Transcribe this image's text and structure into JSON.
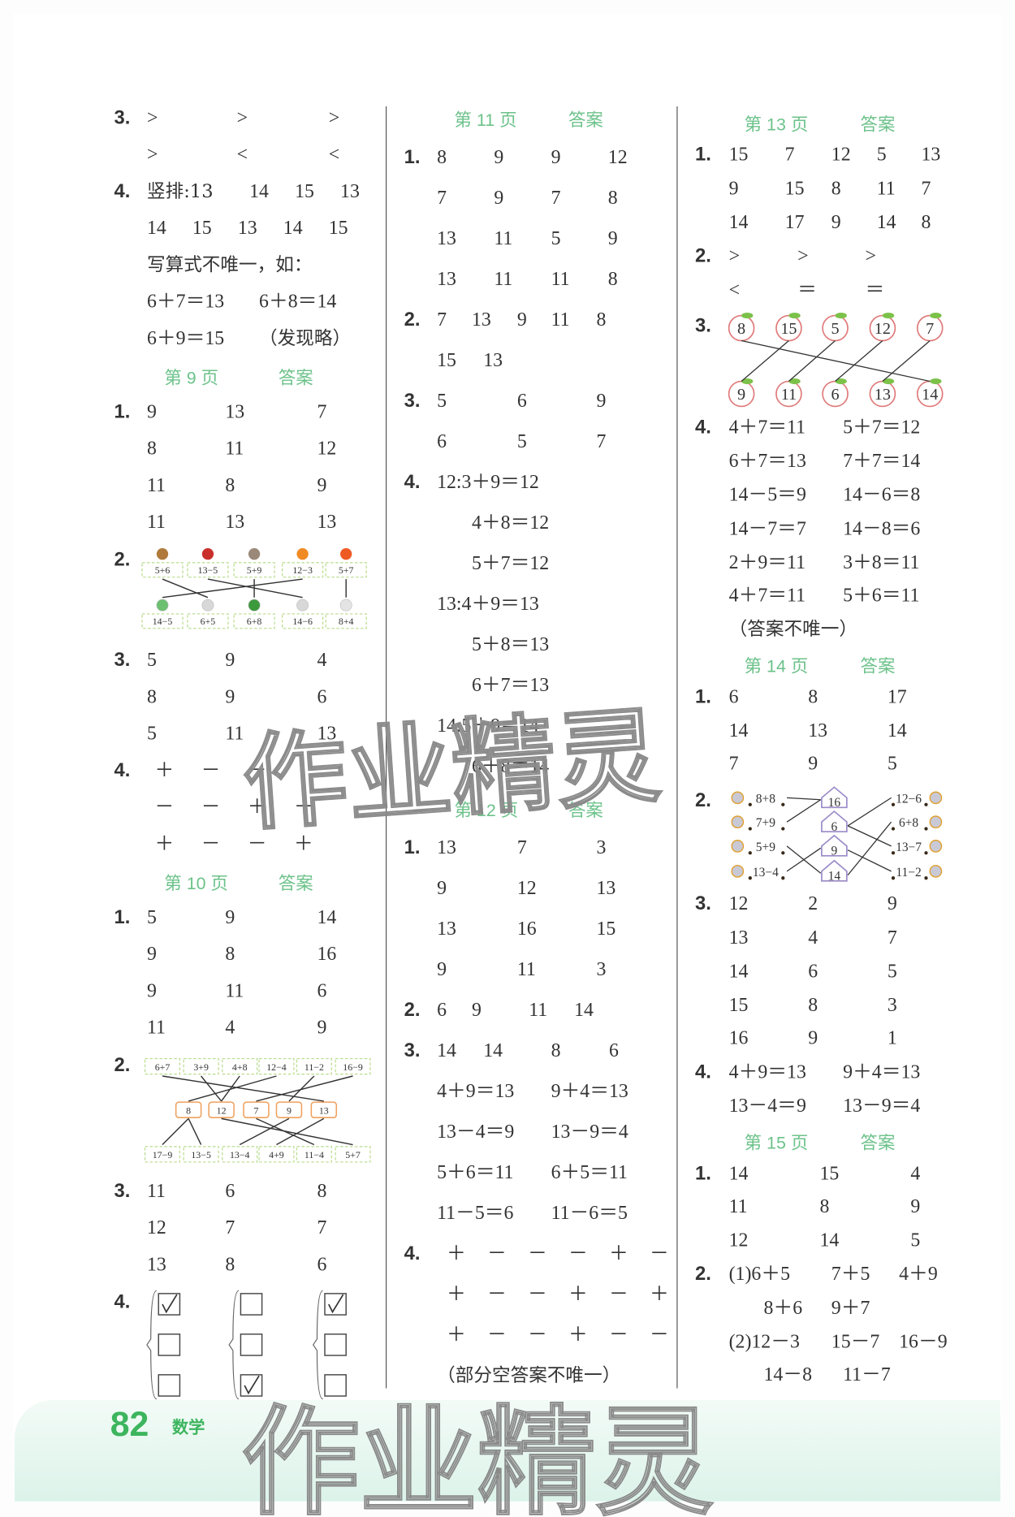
{
  "footer": {
    "page_number": "82",
    "subject": "数学"
  },
  "watermark": "作业精灵",
  "colors": {
    "header_green": "#6cc28a",
    "page_number_green": "#3db55e",
    "box_dash_green": "#b8dc8c",
    "box_orange": "#efa15e",
    "apple_red": "#e07a7a"
  },
  "columns": [
    {
      "blocks": [
        {
          "type": "line",
          "label": "3.",
          "cells": [
            ">",
            ">",
            ">"
          ]
        },
        {
          "type": "line",
          "label": "",
          "cells": [
            ">",
            "<",
            "<"
          ]
        },
        {
          "type": "line",
          "label": "4.",
          "cells": [
            "竖排:13",
            "14",
            "15",
            "13"
          ]
        },
        {
          "type": "line",
          "label": "",
          "cells": [
            "14",
            "15",
            "13",
            "14",
            "15"
          ]
        },
        {
          "type": "line",
          "label": "",
          "cells": [
            "写算式不唯一，如："
          ]
        },
        {
          "type": "line",
          "label": "",
          "cells": [
            "6＋7＝13",
            "6＋8＝14"
          ]
        },
        {
          "type": "line",
          "label": "",
          "cells": [
            "6＋9＝15",
            "（发现略）"
          ]
        },
        {
          "type": "header",
          "page": "第 9 页",
          "answer": "答案"
        },
        {
          "type": "line",
          "label": "1.",
          "cells": [
            "9",
            "13",
            "7"
          ]
        },
        {
          "type": "line",
          "label": "",
          "cells": [
            "8",
            "11",
            "12"
          ]
        },
        {
          "type": "line",
          "label": "",
          "cells": [
            "11",
            "8",
            "9"
          ]
        },
        {
          "type": "line",
          "label": "",
          "cells": [
            "11",
            "13",
            "13"
          ]
        },
        {
          "type": "diagram",
          "id": "d9",
          "label": "2.",
          "top": [
            "5+6",
            "13−5",
            "5+9",
            "12−3",
            "5+7"
          ],
          "top_icons": [
            "monkey-icon",
            "ladybug-icon",
            "bird-icon",
            "fox-icon",
            "squirrel-icon"
          ],
          "bottom": [
            "14−5",
            "6+5",
            "6+8",
            "14−6",
            "8+4"
          ],
          "bottom_icons": [
            "bird-icon",
            "rabbit-icon",
            "turtle-icon",
            "rabbit-icon",
            "goat-icon"
          ],
          "matches": [
            [
              0,
              1
            ],
            [
              1,
              3
            ],
            [
              2,
              2
            ],
            [
              3,
              0
            ],
            [
              4,
              4
            ]
          ]
        },
        {
          "type": "line",
          "label": "3.",
          "cells": [
            "5",
            "9",
            "4"
          ]
        },
        {
          "type": "line",
          "label": "",
          "cells": [
            "8",
            "9",
            "6"
          ]
        },
        {
          "type": "line",
          "label": "",
          "cells": [
            "5",
            "11",
            "13"
          ]
        },
        {
          "type": "line",
          "label": "4.",
          "cells": [
            "＋",
            "－",
            "－"
          ]
        },
        {
          "type": "line",
          "label": "",
          "cells": [
            "－",
            "－",
            "＋",
            "－"
          ]
        },
        {
          "type": "line",
          "label": "",
          "cells": [
            "＋",
            "－",
            "－",
            "＋"
          ]
        },
        {
          "type": "header",
          "page": "第 10 页",
          "answer": "答案"
        },
        {
          "type": "line",
          "label": "1.",
          "cells": [
            "5",
            "9",
            "14"
          ]
        },
        {
          "type": "line",
          "label": "",
          "cells": [
            "9",
            "8",
            "16"
          ]
        },
        {
          "type": "line",
          "label": "",
          "cells": [
            "9",
            "11",
            "6"
          ]
        },
        {
          "type": "line",
          "label": "",
          "cells": [
            "11",
            "4",
            "9"
          ]
        },
        {
          "type": "diagram",
          "id": "d10",
          "label": "2.",
          "top": [
            "6+7",
            "3+9",
            "4+8",
            "12−4",
            "11−2",
            "16−9"
          ],
          "middle": [
            "8",
            "12",
            "7",
            "9",
            "13"
          ],
          "bottom": [
            "17−9",
            "13−5",
            "13−4",
            "4+9",
            "11−4",
            "5+7"
          ],
          "top_matches": [
            [
              0,
              4
            ],
            [
              1,
              1
            ],
            [
              2,
              1
            ],
            [
              3,
              0
            ],
            [
              4,
              3
            ],
            [
              5,
              2
            ]
          ],
          "bottom_matches": [
            [
              0,
              0
            ],
            [
              0,
              1
            ],
            [
              1,
              5
            ],
            [
              2,
              4
            ],
            [
              3,
              2
            ],
            [
              4,
              3
            ]
          ]
        },
        {
          "type": "line",
          "label": "3.",
          "cells": [
            "11",
            "6",
            "8"
          ]
        },
        {
          "type": "line",
          "label": "",
          "cells": [
            "12",
            "7",
            "7"
          ]
        },
        {
          "type": "line",
          "label": "",
          "cells": [
            "13",
            "8",
            "6"
          ]
        },
        {
          "type": "diagram",
          "id": "checks",
          "label": "4.",
          "groups": [
            [
              true,
              false,
              false
            ],
            [
              false,
              false,
              true
            ],
            [
              true,
              false,
              false
            ]
          ]
        }
      ]
    },
    {
      "blocks": [
        {
          "type": "header",
          "page": "第 11 页",
          "answer": "答案"
        },
        {
          "type": "line",
          "label": "1.",
          "cells": [
            "8",
            "9",
            "9",
            "12"
          ]
        },
        {
          "type": "line",
          "label": "",
          "cells": [
            "7",
            "9",
            "7",
            "8"
          ]
        },
        {
          "type": "line",
          "label": "",
          "cells": [
            "13",
            "11",
            "5",
            "9"
          ]
        },
        {
          "type": "line",
          "label": "",
          "cells": [
            "13",
            "11",
            "11",
            "8"
          ]
        },
        {
          "type": "line",
          "label": "2.",
          "cells": [
            "7",
            "13",
            "9",
            "11",
            "8"
          ]
        },
        {
          "type": "line",
          "label": "",
          "cells": [
            "15",
            "13"
          ]
        },
        {
          "type": "line",
          "label": "3.",
          "cells": [
            "5",
            "6",
            "9"
          ]
        },
        {
          "type": "line",
          "label": "",
          "cells": [
            "6",
            "5",
            "7"
          ]
        },
        {
          "type": "line",
          "label": "4.",
          "cells": [
            "12:3＋9＝12"
          ]
        },
        {
          "type": "line",
          "label": "",
          "cells": [
            "4＋8＝12"
          ]
        },
        {
          "type": "line",
          "label": "",
          "cells": [
            "5＋7＝12"
          ]
        },
        {
          "type": "line",
          "label": "",
          "cells": [
            "13:4＋9＝13"
          ]
        },
        {
          "type": "line",
          "label": "",
          "cells": [
            "5＋8＝13"
          ]
        },
        {
          "type": "line",
          "label": "",
          "cells": [
            "6＋7＝13"
          ]
        },
        {
          "type": "line",
          "label": "",
          "cells": [
            "14:5＋9＝14"
          ]
        },
        {
          "type": "line",
          "label": "",
          "cells": [
            "6＋8＝14"
          ]
        },
        {
          "type": "header",
          "page": "第 12 页",
          "answer": "答案"
        },
        {
          "type": "line",
          "label": "1.",
          "cells": [
            "13",
            "7",
            "3"
          ]
        },
        {
          "type": "line",
          "label": "",
          "cells": [
            "9",
            "12",
            "13"
          ]
        },
        {
          "type": "line",
          "label": "",
          "cells": [
            "13",
            "16",
            "15"
          ]
        },
        {
          "type": "line",
          "label": "",
          "cells": [
            "9",
            "11",
            "3"
          ]
        },
        {
          "type": "line",
          "label": "2.",
          "cells": [
            "6",
            "9",
            "11",
            "14"
          ]
        },
        {
          "type": "line",
          "label": "3.",
          "cells": [
            "14",
            "14",
            "8",
            "6"
          ]
        },
        {
          "type": "line",
          "label": "",
          "cells": [
            "4＋9＝13",
            "9＋4＝13"
          ]
        },
        {
          "type": "line",
          "label": "",
          "cells": [
            "13－4＝9",
            "13－9＝4"
          ]
        },
        {
          "type": "line",
          "label": "",
          "cells": [
            "5＋6＝11",
            "6＋5＝11"
          ]
        },
        {
          "type": "line",
          "label": "",
          "cells": [
            "11－5＝6",
            "11－6＝5"
          ]
        },
        {
          "type": "line",
          "label": "4.",
          "cells": [
            "＋",
            "－",
            "－",
            "－",
            "＋",
            "－"
          ]
        },
        {
          "type": "line",
          "label": "",
          "cells": [
            "＋",
            "－",
            "－",
            "＋",
            "－",
            "＋"
          ]
        },
        {
          "type": "line",
          "label": "",
          "cells": [
            "＋",
            "－",
            "－",
            "＋",
            "－",
            "－"
          ]
        },
        {
          "type": "line",
          "label": "",
          "cells": [
            "（部分空答案不唯一）"
          ]
        }
      ]
    },
    {
      "blocks": [
        {
          "type": "header",
          "page": "第 13 页",
          "answer": "答案"
        },
        {
          "type": "line",
          "label": "1.",
          "cells": [
            "15",
            "7",
            "12",
            "5",
            "13"
          ]
        },
        {
          "type": "line",
          "label": "",
          "cells": [
            "9",
            "15",
            "8",
            "11",
            "7"
          ]
        },
        {
          "type": "line",
          "label": "",
          "cells": [
            "14",
            "17",
            "9",
            "14",
            "8"
          ]
        },
        {
          "type": "line",
          "label": "2.",
          "cells": [
            ">",
            ">",
            ">"
          ]
        },
        {
          "type": "line",
          "label": "",
          "cells": [
            "<",
            "＝",
            "＝"
          ]
        },
        {
          "type": "diagram",
          "id": "d13",
          "label": "3.",
          "top": [
            "8",
            "15",
            "5",
            "12",
            "7"
          ],
          "bottom": [
            "9",
            "11",
            "6",
            "13",
            "14"
          ],
          "matches": [
            [
              0,
              4
            ],
            [
              1,
              0
            ],
            [
              2,
              1
            ],
            [
              3,
              2
            ],
            [
              4,
              3
            ]
          ]
        },
        {
          "type": "line",
          "label": "4.",
          "cells": [
            "4＋7＝11",
            "5＋7＝12"
          ]
        },
        {
          "type": "line",
          "label": "",
          "cells": [
            "6＋7＝13",
            "7＋7＝14"
          ]
        },
        {
          "type": "line",
          "label": "",
          "cells": [
            "14－5＝9",
            "14－6＝8"
          ]
        },
        {
          "type": "line",
          "label": "",
          "cells": [
            "14－7＝7",
            "14－8＝6"
          ]
        },
        {
          "type": "line",
          "label": "",
          "cells": [
            "2＋9＝11",
            "3＋8＝11"
          ]
        },
        {
          "type": "line",
          "label": "",
          "cells": [
            "4＋7＝11",
            "5＋6＝11"
          ]
        },
        {
          "type": "line",
          "label": "",
          "cells": [
            "（答案不唯一）"
          ]
        },
        {
          "type": "header",
          "page": "第 14 页",
          "answer": "答案"
        },
        {
          "type": "line",
          "label": "1.",
          "cells": [
            "6",
            "8",
            "17"
          ]
        },
        {
          "type": "line",
          "label": "",
          "cells": [
            "14",
            "13",
            "14"
          ]
        },
        {
          "type": "line",
          "label": "",
          "cells": [
            "7",
            "9",
            "5"
          ]
        },
        {
          "type": "diagram",
          "id": "d14",
          "label": "2.",
          "left": [
            "8+8",
            "7+9",
            "5+9",
            "13−4"
          ],
          "houses": [
            "16",
            "6",
            "9",
            "14"
          ],
          "right": [
            "12−6",
            "6+8",
            "13−7",
            "11−2"
          ],
          "left_matches": [
            [
              0,
              0
            ],
            [
              1,
              0
            ],
            [
              2,
              3
            ],
            [
              3,
              2
            ]
          ],
          "right_matches": [
            [
              0,
              1
            ],
            [
              1,
              3
            ],
            [
              2,
              1
            ],
            [
              3,
              2
            ]
          ]
        },
        {
          "type": "line",
          "label": "3.",
          "cells": [
            "12",
            "2",
            "9"
          ]
        },
        {
          "type": "line",
          "label": "",
          "cells": [
            "13",
            "4",
            "7"
          ]
        },
        {
          "type": "line",
          "label": "",
          "cells": [
            "14",
            "6",
            "5"
          ]
        },
        {
          "type": "line",
          "label": "",
          "cells": [
            "15",
            "8",
            "3"
          ]
        },
        {
          "type": "line",
          "label": "",
          "cells": [
            "16",
            "9",
            "1"
          ]
        },
        {
          "type": "line",
          "label": "4.",
          "cells": [
            "4＋9＝13",
            "9＋4＝13"
          ]
        },
        {
          "type": "line",
          "label": "",
          "cells": [
            "13－4＝9",
            "13－9＝4"
          ]
        },
        {
          "type": "header",
          "page": "第 15 页",
          "answer": "答案"
        },
        {
          "type": "line",
          "label": "1.",
          "cells": [
            "14",
            "15",
            "4"
          ]
        },
        {
          "type": "line",
          "label": "",
          "cells": [
            "11",
            "8",
            "9"
          ]
        },
        {
          "type": "line",
          "label": "",
          "cells": [
            "12",
            "14",
            "5"
          ]
        },
        {
          "type": "line",
          "label": "2.",
          "cells": [
            "(1)6＋5",
            "7＋5",
            "4＋9"
          ]
        },
        {
          "type": "line",
          "label": "",
          "cells": [
            "8＋6",
            "9＋7"
          ]
        },
        {
          "type": "line",
          "label": "",
          "cells": [
            "(2)12－3",
            "15－7",
            "16－9"
          ]
        },
        {
          "type": "line",
          "label": "",
          "cells": [
            "14－8",
            "11－7"
          ]
        }
      ]
    }
  ]
}
